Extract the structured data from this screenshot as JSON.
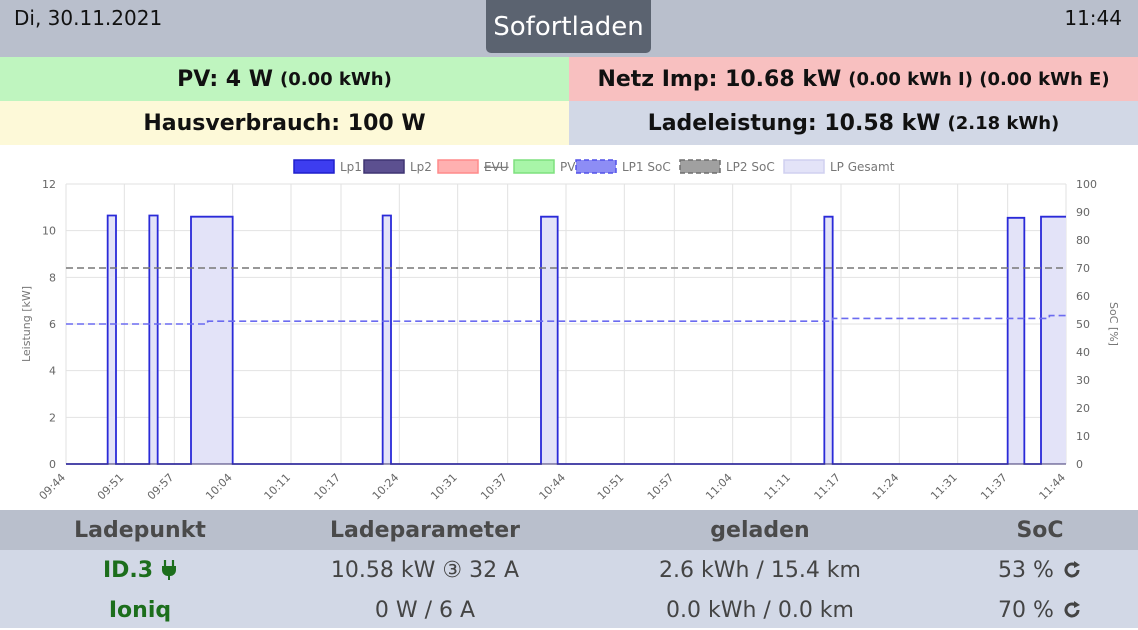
{
  "header": {
    "date": "Di, 30.11.2021",
    "time": "11:44",
    "mode_button": "Sofortladen"
  },
  "tiles": {
    "pv": {
      "label": "PV: 4 W",
      "detail": "(0.00 kWh)"
    },
    "grid": {
      "label": "Netz Imp: 10.68 kW",
      "detail": "(0.00 kWh I) (0.00 kWh E)"
    },
    "house": {
      "label": "Hausverbrauch: 100 W",
      "detail": ""
    },
    "charge": {
      "label": "Ladeleistung: 10.58 kW",
      "detail": "(2.18 kWh)"
    }
  },
  "chart_data": {
    "type": "line",
    "ylabel": "Leistung [kW]",
    "y2label": "SoC [%]",
    "ylim": [
      0,
      12
    ],
    "y2lim": [
      0,
      100
    ],
    "yticks": [
      0,
      2,
      4,
      6,
      8,
      10,
      12
    ],
    "y2ticks": [
      0,
      10,
      20,
      30,
      40,
      50,
      60,
      70,
      80,
      90,
      100
    ],
    "xlim": [
      "09:44",
      "11:44"
    ],
    "xticks": [
      "09:44",
      "09:51",
      "09:57",
      "10:04",
      "10:11",
      "10:17",
      "10:24",
      "10:31",
      "10:37",
      "10:44",
      "10:51",
      "10:57",
      "11:04",
      "11:11",
      "11:17",
      "11:24",
      "11:31",
      "11:37",
      "11:44"
    ],
    "grid": true,
    "legend_position": "top",
    "legend": [
      {
        "name": "Lp1",
        "style": "solid",
        "fill": "#3d3df0",
        "stroke": "#1f1fcc",
        "hidden": false
      },
      {
        "name": "Lp2",
        "style": "solid",
        "fill": "#5c5090",
        "stroke": "#3e3472",
        "hidden": false
      },
      {
        "name": "EVU",
        "style": "solid",
        "fill": "#ffb0b0",
        "stroke": "#ff8a8a",
        "hidden": true
      },
      {
        "name": "PV",
        "style": "solid",
        "fill": "#a8f5a8",
        "stroke": "#7ee07e",
        "hidden": false
      },
      {
        "name": "LP1 SoC",
        "style": "dashed",
        "fill": "#8d8df5",
        "stroke": "#5252e8",
        "hidden": false
      },
      {
        "name": "LP2 SoC",
        "style": "dashed",
        "fill": "#a0a0a0",
        "stroke": "#6e6e6e",
        "hidden": false
      },
      {
        "name": "LP Gesamt",
        "style": "solid",
        "fill": "#e3e3f8",
        "stroke": "#d0d0f0",
        "hidden": false
      }
    ],
    "series": [
      {
        "name": "Lp1",
        "axis": "left",
        "points": [
          [
            "09:44",
            0
          ],
          [
            "09:49",
            0
          ],
          [
            "09:49",
            10.65
          ],
          [
            "09:50",
            10.65
          ],
          [
            "09:50",
            0
          ],
          [
            "09:54",
            0
          ],
          [
            "09:54",
            10.65
          ],
          [
            "09:55",
            10.65
          ],
          [
            "09:55",
            0
          ],
          [
            "09:59",
            0
          ],
          [
            "09:59",
            10.6
          ],
          [
            "10:04",
            10.6
          ],
          [
            "10:04",
            0
          ],
          [
            "10:22",
            0
          ],
          [
            "10:22",
            10.65
          ],
          [
            "10:23",
            10.65
          ],
          [
            "10:23",
            0
          ],
          [
            "10:41",
            0
          ],
          [
            "10:41",
            10.6
          ],
          [
            "10:43",
            10.6
          ],
          [
            "10:43",
            0
          ],
          [
            "11:15",
            0
          ],
          [
            "11:15",
            10.6
          ],
          [
            "11:16",
            10.6
          ],
          [
            "11:16",
            0
          ],
          [
            "11:37",
            0
          ],
          [
            "11:37",
            10.55
          ],
          [
            "11:39",
            10.55
          ],
          [
            "11:39",
            0
          ],
          [
            "11:41",
            0
          ],
          [
            "11:41",
            10.6
          ],
          [
            "11:44",
            10.6
          ]
        ]
      },
      {
        "name": "LP1 SoC",
        "axis": "right",
        "points": [
          [
            "09:44",
            50
          ],
          [
            "10:01",
            50
          ],
          [
            "10:01",
            51
          ],
          [
            "11:16",
            51
          ],
          [
            "11:16",
            52
          ],
          [
            "11:42",
            52
          ],
          [
            "11:42",
            53
          ],
          [
            "11:44",
            53
          ]
        ]
      },
      {
        "name": "LP2 SoC",
        "axis": "right",
        "points": [
          [
            "09:44",
            70
          ],
          [
            "11:44",
            70
          ]
        ]
      },
      {
        "name": "Lp2",
        "axis": "left",
        "points": [
          [
            "09:44",
            0
          ],
          [
            "11:44",
            0
          ]
        ]
      },
      {
        "name": "PV",
        "axis": "left",
        "points": [
          [
            "09:44",
            0
          ],
          [
            "11:44",
            0
          ]
        ]
      }
    ]
  },
  "table": {
    "headers": [
      "Ladepunkt",
      "Ladeparameter",
      "geladen",
      "SoC"
    ],
    "rows": [
      {
        "name": "ID.3",
        "icon": "plug-icon",
        "params": "10.58 kW ③ 32 A",
        "charged": "2.6 kWh / 15.4 km",
        "soc": "53 %",
        "soc_icon": "refresh-icon"
      },
      {
        "name": "Ioniq",
        "icon": "",
        "params": "0 W / 6 A",
        "charged": "0.0 kWh / 0.0 km",
        "soc": "70 %",
        "soc_icon": "refresh-icon"
      }
    ]
  }
}
